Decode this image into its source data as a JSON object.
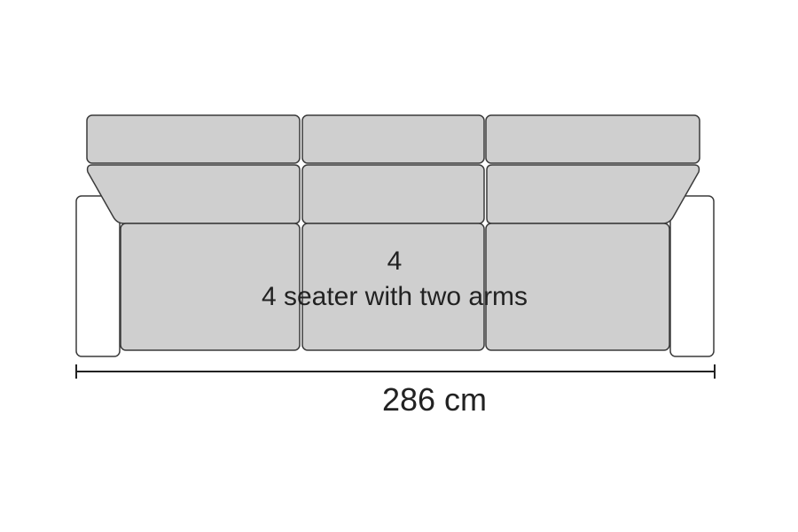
{
  "model": {
    "number": "4",
    "description": "4 seater with two arms"
  },
  "dimension": {
    "width_label": "286 cm"
  },
  "colors": {
    "cushion_fill": "#cfcfcf",
    "arm_fill": "#ffffff",
    "outline": "#3a3a3a",
    "text": "#222222"
  }
}
